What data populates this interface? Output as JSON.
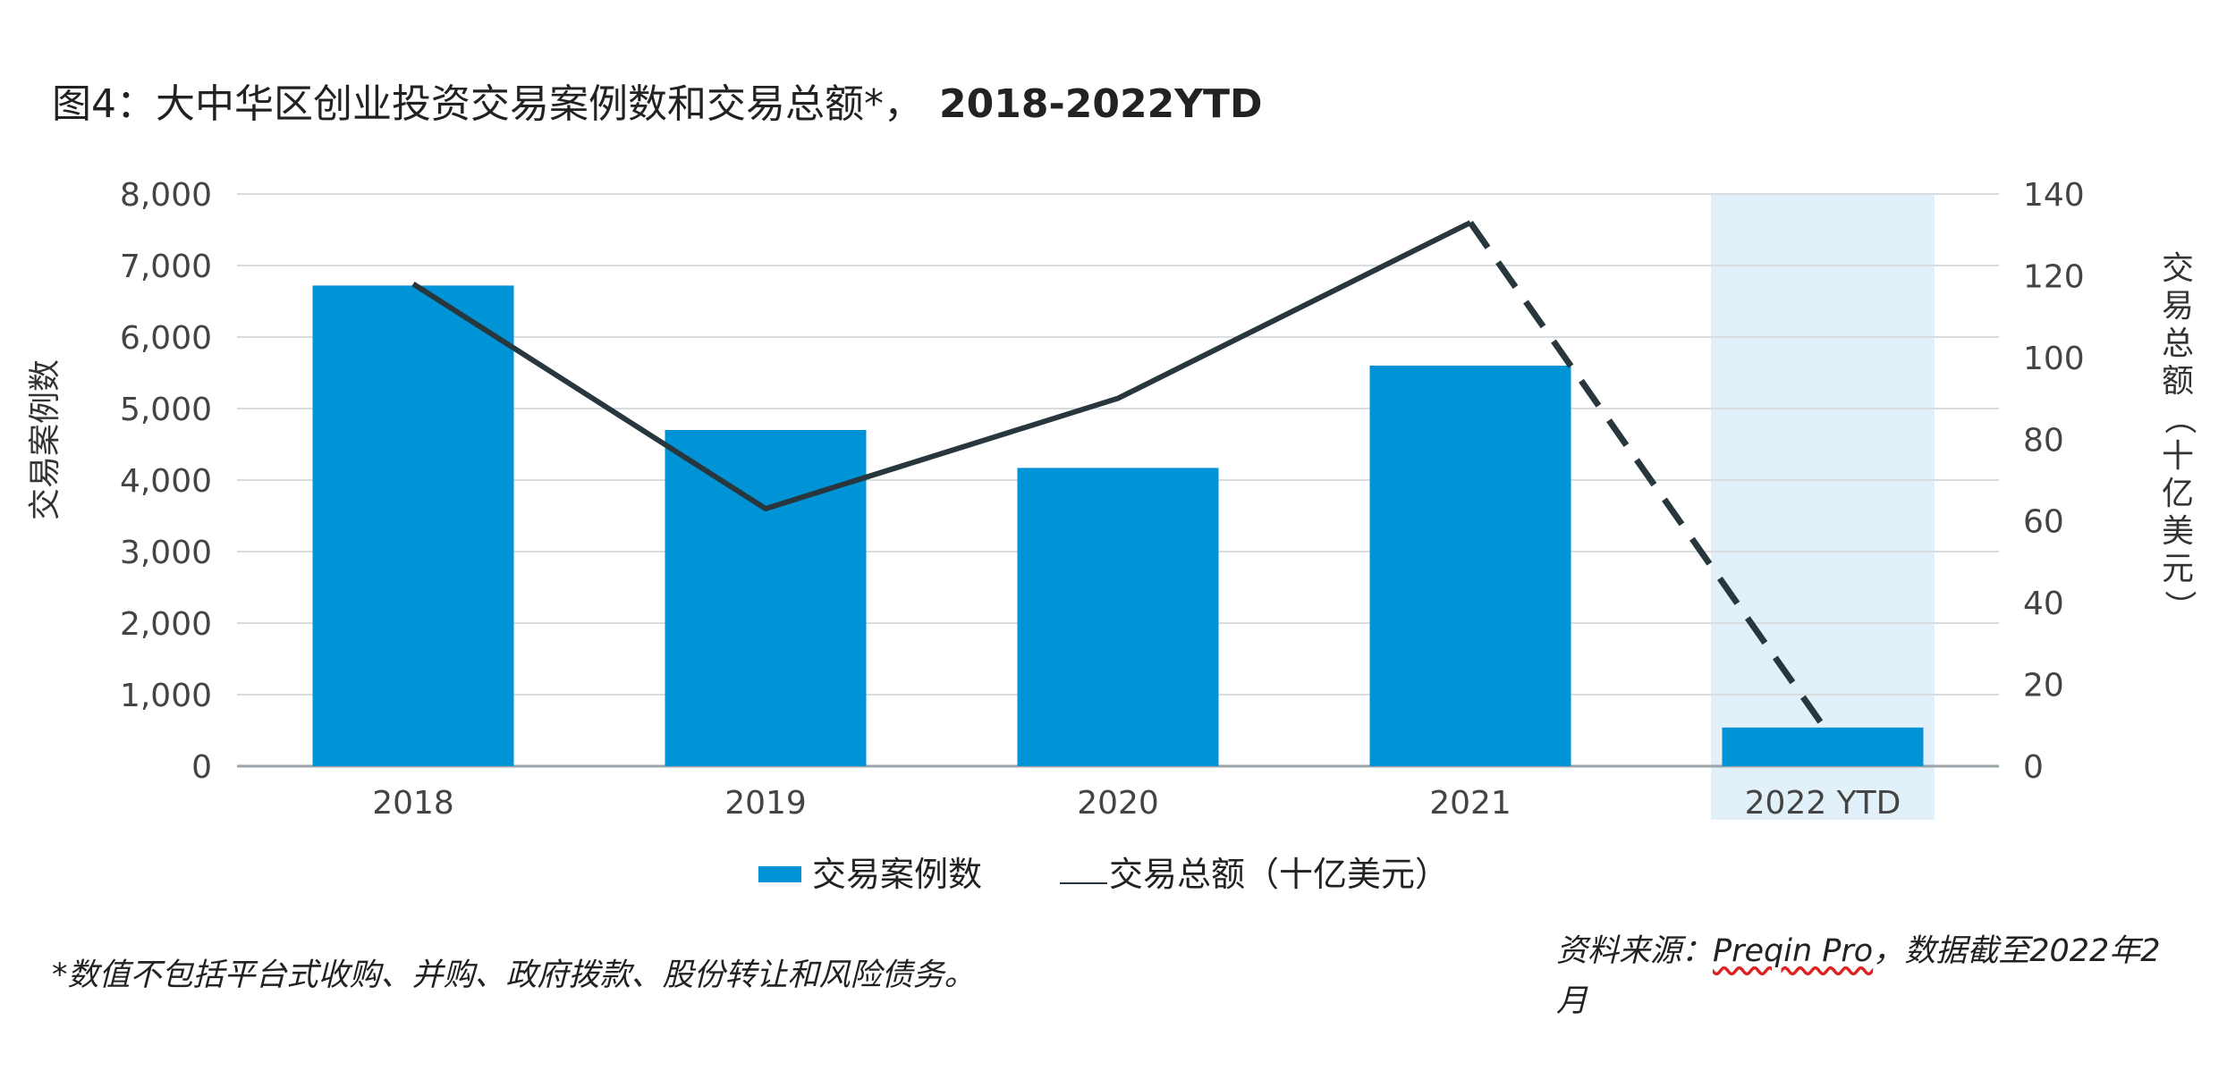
{
  "title": {
    "prefix": "图4：大中华区创业投资交易案例数和交易总额*，",
    "years": "2018-2022YTD"
  },
  "footnote": "*数值不包括平台式收购、并购、政府拨款、股份转让和风险债务。",
  "source": {
    "label": "资料来源：",
    "name": "Preqin Pro",
    "rest": "，数据截至2022年2月"
  },
  "chart_data": {
    "type": "bar",
    "categories": [
      "2018",
      "2019",
      "2020",
      "2021",
      "2022 YTD"
    ],
    "series": [
      {
        "name": "交易案例数",
        "kind": "bar",
        "axis": "left",
        "values": [
          6720,
          4700,
          4170,
          5600,
          540
        ],
        "color": "#0093d6"
      },
      {
        "name": "交易总额（十亿美元）",
        "kind": "line",
        "axis": "right",
        "values": [
          118,
          63,
          90,
          133,
          10
        ],
        "color": "#28363e",
        "dashed_from_index": 3
      }
    ],
    "left_axis": {
      "label": "交易案例数",
      "range": [
        0,
        8000
      ],
      "ticks": [
        0,
        1000,
        2000,
        3000,
        4000,
        5000,
        6000,
        7000,
        8000
      ],
      "tick_labels": [
        "0",
        "1,000",
        "2,000",
        "3,000",
        "4,000",
        "5,000",
        "6,000",
        "7,000",
        "8,000"
      ]
    },
    "right_axis": {
      "label": "交易总额（十亿美元）",
      "range": [
        0,
        140
      ],
      "ticks": [
        0,
        20,
        40,
        60,
        80,
        100,
        120,
        140
      ],
      "tick_labels": [
        "0",
        "20",
        "40",
        "60",
        "80",
        "100",
        "120",
        "140"
      ]
    },
    "highlight_category": "2022 YTD",
    "highlight_color": "#e2f0f9",
    "grid": true,
    "legend": {
      "placement": "bottom",
      "items": [
        "交易案例数",
        "交易总额（十亿美元）"
      ]
    }
  }
}
